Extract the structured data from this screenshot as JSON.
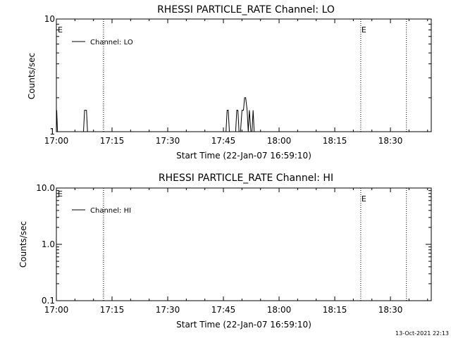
{
  "chart_data": [
    {
      "type": "line",
      "title": "RHESSI PARTICLE_RATE Channel: LO",
      "xlabel": "Start Time (22-Jan-07 16:59:10)",
      "ylabel": "Counts/sec",
      "x_ticks": [
        "17:00",
        "17:15",
        "17:30",
        "17:45",
        "18:00",
        "18:15",
        "18:30"
      ],
      "x_tick_minutes": [
        0,
        15,
        30,
        45,
        60,
        75,
        90
      ],
      "xlim_minutes": [
        0,
        101
      ],
      "y_scale": "log",
      "ylim": [
        1,
        10
      ],
      "y_ticks": [
        "1",
        "10"
      ],
      "y_tick_values": [
        1,
        10
      ],
      "legend": {
        "entries": [
          "Channel: LO"
        ],
        "position": "top-left"
      },
      "markers": [
        {
          "x_minutes": 12.7,
          "label": ""
        },
        {
          "x_minutes": 82.0,
          "label": "E"
        },
        {
          "x_minutes": 94.3,
          "label": ""
        }
      ],
      "left_marker_label": "E",
      "series": [
        {
          "name": "Channel: LO",
          "x_minutes": [
            0,
            0.1,
            0.3,
            0.5,
            7.3,
            7.6,
            8.1,
            8.4,
            45.7,
            46.0,
            46.3,
            46.6,
            48.3,
            48.6,
            48.9,
            49.2,
            49.6,
            50.0,
            50.4,
            50.7,
            51.0,
            51.4,
            51.7,
            52.0,
            52.4,
            52.7,
            53.0,
            53.3
          ],
          "values": [
            1,
            1.55,
            1,
            1,
            1,
            1.55,
            1.55,
            1,
            1,
            1.55,
            1.55,
            1,
            1,
            1.55,
            1.55,
            1,
            1,
            1.55,
            1.55,
            2.0,
            2.0,
            1.55,
            1,
            1.55,
            1,
            1,
            1.55,
            1
          ]
        }
      ]
    },
    {
      "type": "line",
      "title": "RHESSI PARTICLE_RATE Channel: HI",
      "xlabel": "Start Time (22-Jan-07 16:59:10)",
      "ylabel": "Counts/sec",
      "x_ticks": [
        "17:00",
        "17:15",
        "17:30",
        "17:45",
        "18:00",
        "18:15",
        "18:30"
      ],
      "x_tick_minutes": [
        0,
        15,
        30,
        45,
        60,
        75,
        90
      ],
      "xlim_minutes": [
        0,
        101
      ],
      "y_scale": "log",
      "ylim": [
        0.1,
        10
      ],
      "y_ticks": [
        "0.1",
        "1.0",
        "10.0"
      ],
      "y_tick_values": [
        0.1,
        1,
        10
      ],
      "legend": {
        "entries": [
          "Channel: HI"
        ],
        "position": "top-left"
      },
      "markers": [
        {
          "x_minutes": 12.7,
          "label": ""
        },
        {
          "x_minutes": 82.0,
          "label": "E"
        },
        {
          "x_minutes": 94.3,
          "label": ""
        }
      ],
      "left_marker_label": "E",
      "series": [
        {
          "name": "Channel: HI",
          "x_minutes": [],
          "values": []
        }
      ]
    }
  ],
  "footer": {
    "timestamp": "13-Oct-2021 22:13"
  }
}
